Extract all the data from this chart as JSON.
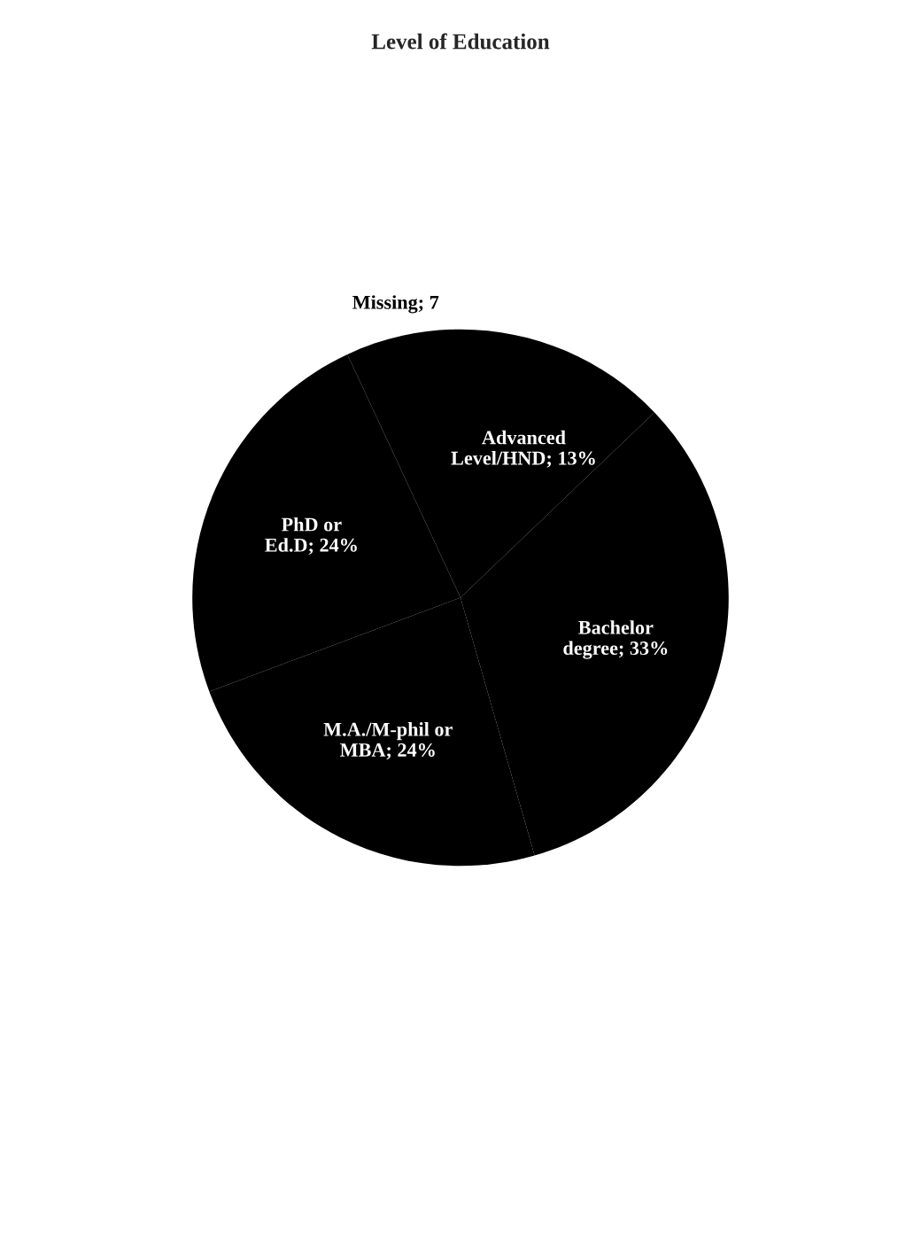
{
  "chart_data": {
    "type": "pie",
    "title": "Level of Education",
    "categories": [
      "Advanced Level/HND",
      "Bachelor degree",
      "M.A./M-phil or MBA",
      "PhD or Ed.D",
      "Missing"
    ],
    "values": [
      13,
      33,
      24,
      24,
      7
    ],
    "value_labels": [
      "13%",
      "33%",
      "24%",
      "24%",
      "7"
    ],
    "colors": [
      "#000000",
      "#000000",
      "#000000",
      "#000000",
      "#000000"
    ],
    "legend": false
  }
}
